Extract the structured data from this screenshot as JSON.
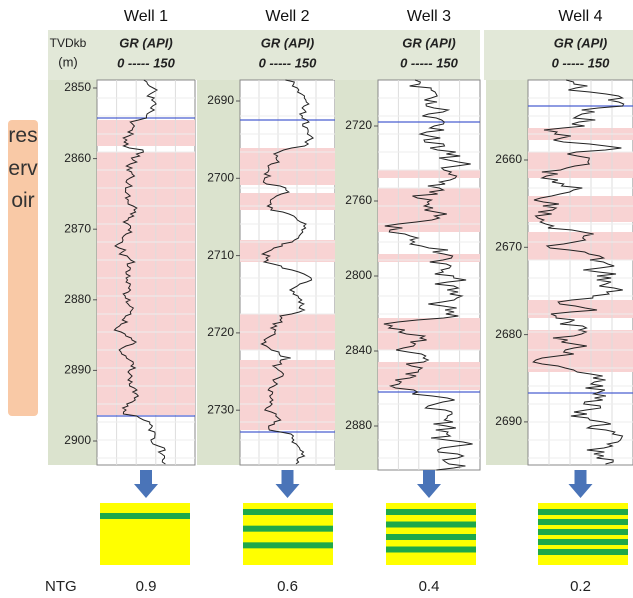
{
  "header": {
    "depth_axis_label": "TVDkb",
    "depth_unit": "(m)"
  },
  "reservoir_label": "reservoir",
  "ntg_label": "NTG",
  "wells": [
    {
      "name": "Well 1",
      "curve_label": "GR (API)",
      "scale_label": "0 ----- 150",
      "depth_ticks": [
        2850,
        2860,
        2870,
        2880,
        2890,
        2900
      ],
      "ntg": "0.9"
    },
    {
      "name": "Well 2",
      "curve_label": "GR (API)",
      "scale_label": "0 ----- 150",
      "depth_ticks": [
        2690,
        2700,
        2710,
        2720,
        2730
      ],
      "ntg": "0.6"
    },
    {
      "name": "Well 3",
      "curve_label": "GR (API)",
      "scale_label": "0 ----- 150",
      "depth_ticks": [
        2720,
        2760,
        2800,
        2840,
        2880
      ],
      "ntg": "0.4"
    },
    {
      "name": "Well 4",
      "curve_label": "GR (API)",
      "scale_label": "0 ----- 150",
      "depth_ticks": [
        2660,
        2670,
        2680,
        2690
      ],
      "ntg": "0.2"
    }
  ]
}
